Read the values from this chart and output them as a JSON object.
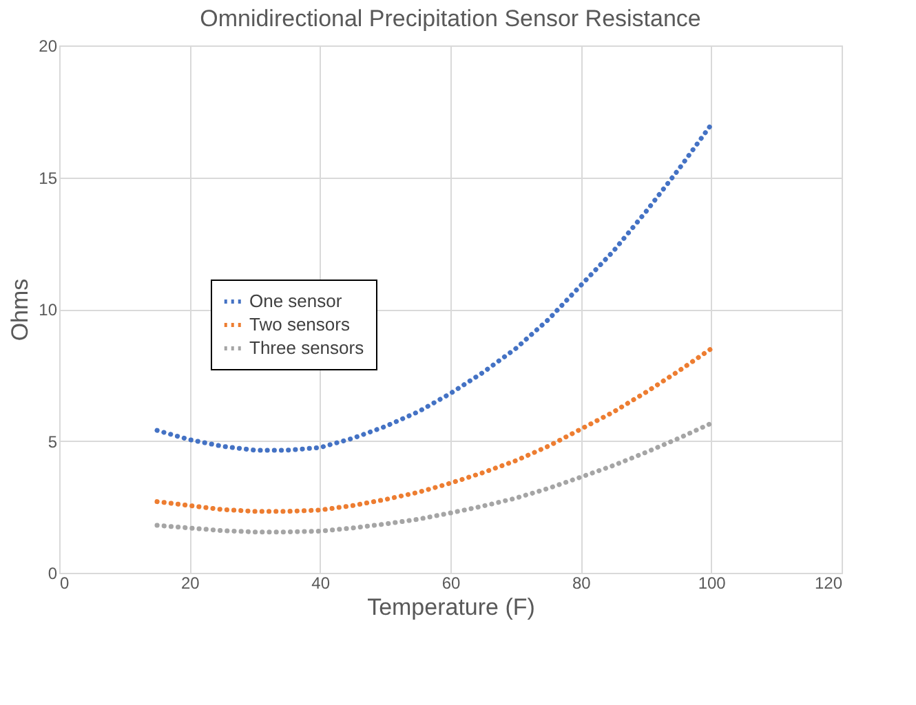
{
  "chart_data": {
    "type": "line",
    "title": "Omnidirectional Precipitation Sensor Resistance",
    "xlabel": "Temperature (F)",
    "ylabel": "Ohms",
    "x": [
      15,
      20,
      25,
      30,
      35,
      40,
      45,
      50,
      55,
      60,
      65,
      70,
      75,
      80,
      85,
      90,
      95,
      100
    ],
    "series": [
      {
        "name": "One sensor",
        "color": "#4472c4",
        "values": [
          5.4,
          5.05,
          4.8,
          4.65,
          4.65,
          4.75,
          5.1,
          5.55,
          6.1,
          6.8,
          7.6,
          8.5,
          9.6,
          10.9,
          12.2,
          13.7,
          15.3,
          17.0
        ]
      },
      {
        "name": "Two sensors",
        "color": "#ed7d31",
        "values": [
          2.7,
          2.55,
          2.4,
          2.33,
          2.33,
          2.38,
          2.55,
          2.78,
          3.05,
          3.4,
          3.8,
          4.25,
          4.8,
          5.45,
          6.1,
          6.85,
          7.65,
          8.5
        ]
      },
      {
        "name": "Three sensors",
        "color": "#a5a5a5",
        "values": [
          1.8,
          1.7,
          1.6,
          1.55,
          1.55,
          1.58,
          1.7,
          1.85,
          2.03,
          2.27,
          2.53,
          2.83,
          3.2,
          3.63,
          4.07,
          4.57,
          5.1,
          5.67
        ]
      }
    ],
    "xlim": [
      0,
      120
    ],
    "xticks": [
      0,
      20,
      40,
      60,
      80,
      100,
      120
    ],
    "ylim": [
      0,
      20
    ],
    "yticks": [
      0,
      5,
      10,
      15,
      20
    ],
    "grid": true,
    "legend": "left",
    "line_style": "dotted",
    "marker": "none"
  }
}
